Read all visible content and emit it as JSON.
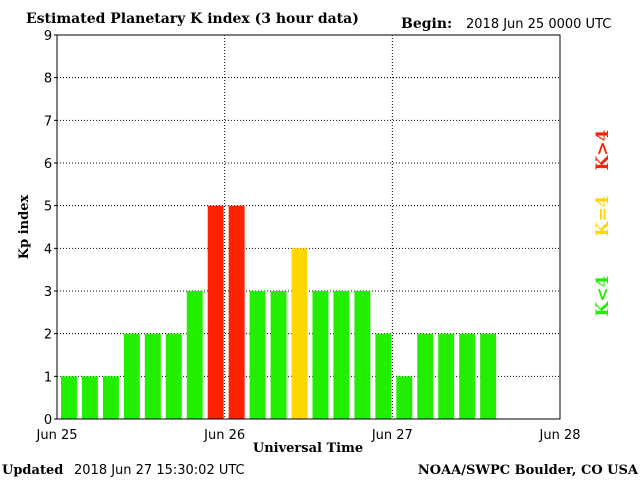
{
  "chart_data": {
    "type": "bar",
    "title": "Estimated Planetary K index (3 hour data)",
    "begin_label": "Begin:",
    "begin_value": "2018 Jun 25 0000 UTC",
    "xlabel": "Universal Time",
    "ylabel": "Kp index",
    "ylim": [
      0,
      9
    ],
    "yticks": [
      "0",
      "1",
      "2",
      "3",
      "4",
      "5",
      "6",
      "7",
      "8",
      "9"
    ],
    "xlim_days": [
      0,
      3
    ],
    "xticks": [
      "Jun 25",
      "Jun 26",
      "Jun 27",
      "Jun 28"
    ],
    "grid": true,
    "values": [
      1,
      1,
      1,
      2,
      2,
      2,
      3,
      5,
      5,
      3,
      3,
      4,
      3,
      3,
      3,
      2,
      1,
      2,
      2,
      2,
      2
    ],
    "legend": [
      {
        "label": "K<4",
        "color": "#22ee00"
      },
      {
        "label": "K=4",
        "color": "#ffd700"
      },
      {
        "label": "K>4",
        "color": "#ff2200"
      }
    ],
    "colors": {
      "low": "#22ee00",
      "equal": "#ffd700",
      "high": "#ff2200"
    }
  },
  "footer": {
    "updated_label": "Updated",
    "updated_value": "2018 Jun 27 15:30:02 UTC",
    "source": "NOAA/SWPC Boulder, CO USA"
  }
}
